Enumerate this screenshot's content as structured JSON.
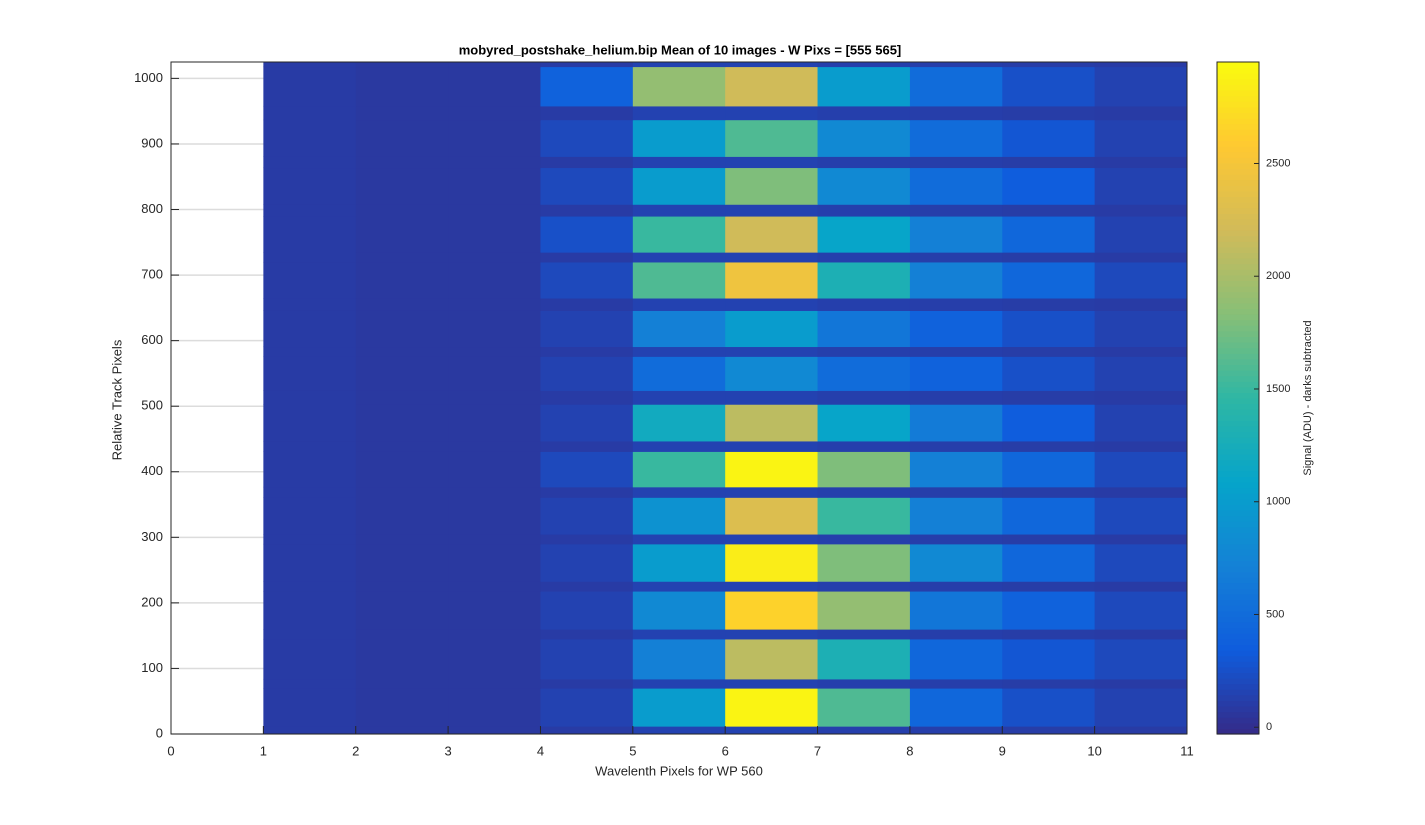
{
  "chart_data": {
    "type": "heatmap",
    "title": "mobyred_postshake_helium.bip  Mean of 10 images - W Pixs = [555  565]",
    "x_label": "Wavelenth Pixels for WP 560",
    "y_label": "Relative Track Pixels",
    "colorbar_label": "Signal (ADU) - darks subtracted",
    "colormap": "parula",
    "x": [
      1,
      2,
      3,
      4,
      5,
      6,
      7,
      8,
      9,
      10,
      11
    ],
    "y": [
      0,
      12,
      70,
      84,
      145,
      160,
      218,
      233,
      290,
      305,
      361,
      377,
      431,
      447,
      503,
      524,
      576,
      591,
      646,
      665,
      720,
      735,
      790,
      808,
      864,
      881,
      937,
      958,
      1018,
      1025
    ],
    "z": [
      [
        100,
        80,
        80,
        100,
        150,
        150,
        130,
        120,
        110,
        100
      ],
      [
        100,
        80,
        80,
        150,
        1000,
        2900,
        1600,
        450,
        250,
        150
      ],
      [
        100,
        80,
        80,
        100,
        150,
        150,
        130,
        120,
        110,
        100
      ],
      [
        100,
        80,
        80,
        150,
        700,
        2100,
        1300,
        450,
        300,
        200
      ],
      [
        100,
        80,
        80,
        100,
        150,
        150,
        130,
        120,
        110,
        100
      ],
      [
        100,
        80,
        80,
        150,
        800,
        2650,
        1900,
        600,
        400,
        200
      ],
      [
        100,
        80,
        80,
        100,
        150,
        150,
        130,
        120,
        110,
        100
      ],
      [
        100,
        80,
        80,
        150,
        1000,
        2850,
        1800,
        800,
        450,
        200
      ],
      [
        100,
        80,
        80,
        100,
        150,
        150,
        130,
        120,
        110,
        100
      ],
      [
        100,
        80,
        80,
        150,
        900,
        2300,
        1500,
        700,
        450,
        200
      ],
      [
        100,
        80,
        80,
        100,
        150,
        150,
        130,
        120,
        110,
        100
      ],
      [
        100,
        80,
        80,
        200,
        1500,
        2900,
        1800,
        700,
        450,
        200
      ],
      [
        100,
        80,
        80,
        100,
        150,
        150,
        130,
        120,
        110,
        100
      ],
      [
        100,
        80,
        80,
        150,
        1200,
        2100,
        1100,
        650,
        350,
        150
      ],
      [
        100,
        80,
        80,
        100,
        150,
        150,
        130,
        120,
        110,
        100
      ],
      [
        100,
        80,
        80,
        150,
        500,
        800,
        500,
        400,
        250,
        150
      ],
      [
        100,
        80,
        80,
        100,
        150,
        150,
        130,
        120,
        110,
        100
      ],
      [
        100,
        80,
        80,
        150,
        700,
        1000,
        600,
        400,
        250,
        150
      ],
      [
        100,
        80,
        80,
        100,
        150,
        150,
        130,
        120,
        110,
        100
      ],
      [
        100,
        80,
        80,
        200,
        1600,
        2450,
        1300,
        700,
        450,
        200
      ],
      [
        100,
        80,
        80,
        100,
        150,
        150,
        130,
        120,
        110,
        100
      ],
      [
        100,
        80,
        80,
        250,
        1500,
        2200,
        1100,
        700,
        450,
        150
      ],
      [
        100,
        80,
        80,
        100,
        150,
        150,
        130,
        120,
        110,
        100
      ],
      [
        100,
        80,
        80,
        200,
        1000,
        1800,
        800,
        500,
        350,
        150
      ],
      [
        100,
        80,
        80,
        100,
        150,
        150,
        130,
        120,
        110,
        100
      ],
      [
        100,
        80,
        80,
        200,
        1000,
        1600,
        800,
        500,
        300,
        150
      ],
      [
        100,
        80,
        80,
        100,
        150,
        150,
        130,
        120,
        110,
        100
      ],
      [
        100,
        80,
        80,
        400,
        1900,
        2200,
        1000,
        500,
        250,
        150
      ],
      [
        100,
        80,
        80,
        100,
        150,
        150,
        130,
        120,
        110,
        100
      ]
    ],
    "xlim": [
      0,
      11
    ],
    "xticks": [
      0,
      1,
      2,
      3,
      4,
      5,
      6,
      7,
      8,
      9,
      10,
      11
    ],
    "ylim": [
      0,
      1025
    ],
    "yticks": [
      0,
      100,
      200,
      300,
      400,
      500,
      600,
      700,
      800,
      900,
      1000
    ],
    "clim": [
      -30,
      2950
    ],
    "cticks": [
      0,
      500,
      1000,
      1500,
      2000,
      2500
    ],
    "grid": true
  }
}
